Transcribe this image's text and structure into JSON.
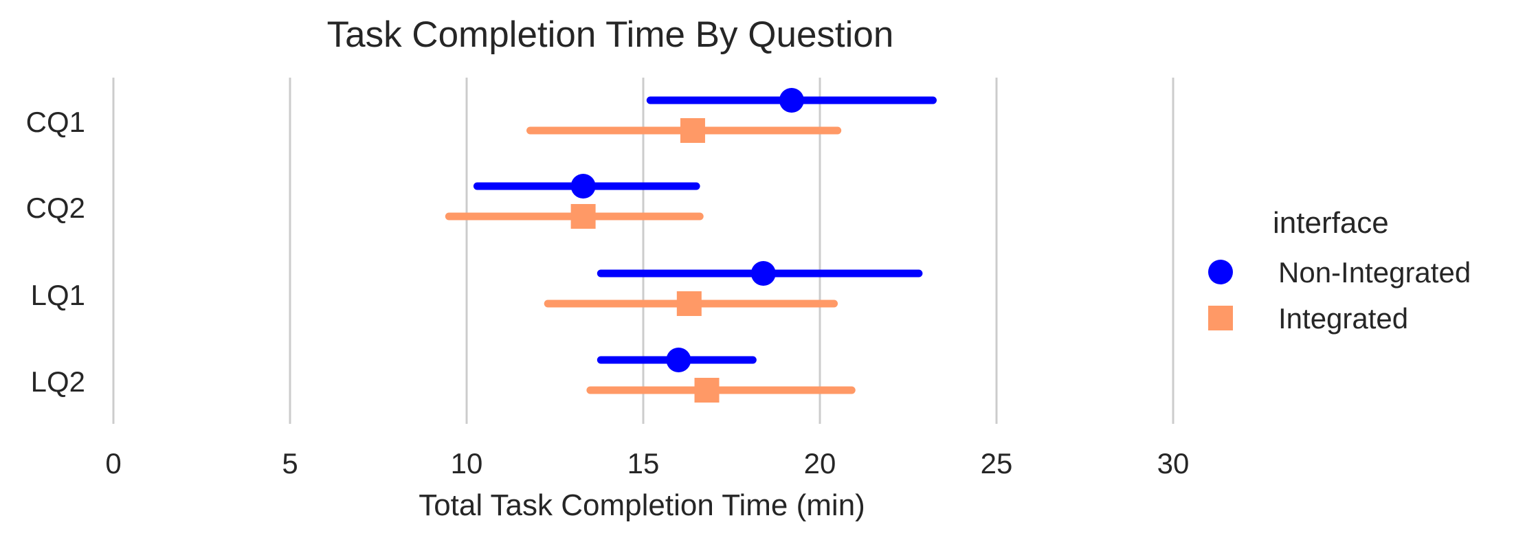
{
  "chart_data": {
    "type": "scatter",
    "subtype": "point-range",
    "orientation": "horizontal",
    "title": "Task Completion Time By Question",
    "xlabel": "Total Task Completion Time (min)",
    "ylabel": "",
    "xlim": [
      0,
      30
    ],
    "xticks": [
      0,
      5,
      10,
      15,
      20,
      25,
      30
    ],
    "xtick_labels": [
      "0",
      "5",
      "10",
      "15",
      "20",
      "25",
      "30"
    ],
    "categories": [
      "CQ1",
      "CQ2",
      "LQ1",
      "LQ2"
    ],
    "grid": "vertical",
    "legend": {
      "title": "interface",
      "position": "right"
    },
    "series": [
      {
        "name": "Non-Integrated",
        "color": "#0000ff",
        "marker": "circle",
        "values": [
          19.2,
          13.3,
          18.4,
          16.0
        ],
        "ci_low": [
          15.2,
          10.3,
          13.8,
          13.8
        ],
        "ci_high": [
          23.2,
          16.5,
          22.8,
          18.1
        ]
      },
      {
        "name": "Integrated",
        "color": "#ff9966",
        "marker": "square",
        "values": [
          16.4,
          13.3,
          16.3,
          16.8
        ],
        "ci_low": [
          11.8,
          9.5,
          12.3,
          13.5
        ],
        "ci_high": [
          20.5,
          16.6,
          20.4,
          20.9
        ]
      }
    ]
  }
}
